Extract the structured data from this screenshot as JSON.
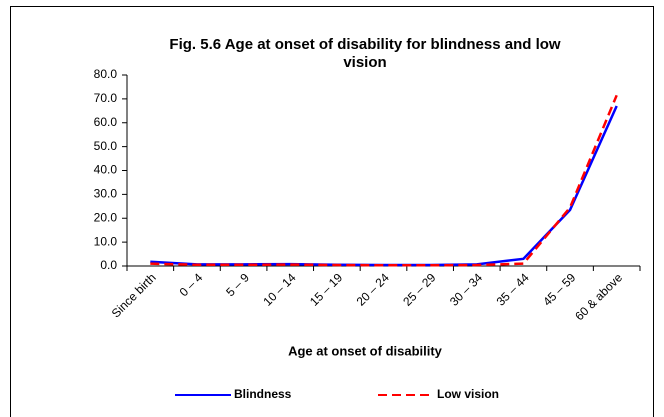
{
  "chart_data": {
    "type": "line",
    "title": [
      "Fig. 5.6 Age at onset of disability for blindness and low",
      "vision"
    ],
    "x_label": "Age at onset of disability",
    "categories": [
      "Since birth",
      "0 – 4",
      "5 – 9",
      "10 – 14",
      "15 – 19",
      "20 – 24",
      "25 – 29",
      "30 – 34",
      "35 – 44",
      "45 – 59",
      "60 & above"
    ],
    "series": [
      {
        "name": "Blindness",
        "color": "#0000ff",
        "dash": false,
        "values": [
          1.8,
          0.7,
          0.7,
          0.8,
          0.5,
          0.4,
          0.4,
          0.7,
          3.0,
          23.5,
          67.0
        ]
      },
      {
        "name": "Low vision",
        "color": "#ff0000",
        "dash": true,
        "values": [
          1.0,
          0.5,
          0.5,
          0.6,
          0.4,
          0.3,
          0.3,
          0.4,
          1.0,
          24.5,
          71.5
        ]
      }
    ],
    "ylim": [
      0,
      80
    ],
    "yticks": [
      {
        "value": 0,
        "label": "0.0"
      },
      {
        "value": 10,
        "label": "10.0"
      },
      {
        "value": 20,
        "label": "20.0"
      },
      {
        "value": 30,
        "label": "30.0"
      },
      {
        "value": 40,
        "label": "40.0"
      },
      {
        "value": 50,
        "label": "50.0"
      },
      {
        "value": 60,
        "label": "60.0"
      },
      {
        "value": 70,
        "label": "70.0"
      },
      {
        "value": 80,
        "label": "80.0"
      }
    ],
    "grid": false,
    "legend": "bottom"
  }
}
